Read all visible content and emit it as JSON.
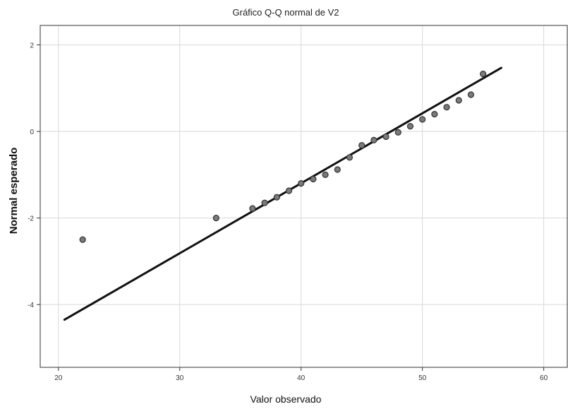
{
  "chart_data": {
    "type": "scatter",
    "title": "Gráfico Q-Q normal de V2",
    "xlabel": "Valor observado",
    "ylabel": "Normal esperado",
    "xlim": [
      18.5,
      62
    ],
    "ylim": [
      -5.45,
      2.45
    ],
    "xticks": [
      20,
      30,
      40,
      50,
      60
    ],
    "yticks": [
      2,
      0,
      -2,
      -4
    ],
    "grid": true,
    "points": [
      {
        "x": 22,
        "y": -2.5
      },
      {
        "x": 33,
        "y": -2.0
      },
      {
        "x": 36,
        "y": -1.78
      },
      {
        "x": 37,
        "y": -1.65
      },
      {
        "x": 38,
        "y": -1.52
      },
      {
        "x": 39,
        "y": -1.37
      },
      {
        "x": 40,
        "y": -1.2
      },
      {
        "x": 41,
        "y": -1.1
      },
      {
        "x": 42,
        "y": -1.0
      },
      {
        "x": 43,
        "y": -0.88
      },
      {
        "x": 44,
        "y": -0.6
      },
      {
        "x": 45,
        "y": -0.32
      },
      {
        "x": 46,
        "y": -0.2
      },
      {
        "x": 47,
        "y": -0.12
      },
      {
        "x": 48,
        "y": -0.02
      },
      {
        "x": 49,
        "y": 0.12
      },
      {
        "x": 50,
        "y": 0.28
      },
      {
        "x": 51,
        "y": 0.4
      },
      {
        "x": 52,
        "y": 0.56
      },
      {
        "x": 53,
        "y": 0.72
      },
      {
        "x": 54,
        "y": 0.85
      },
      {
        "x": 55,
        "y": 1.33
      }
    ],
    "reference_line": {
      "x1": 20.5,
      "y1": -4.35,
      "x2": 56.5,
      "y2": 1.47
    }
  }
}
